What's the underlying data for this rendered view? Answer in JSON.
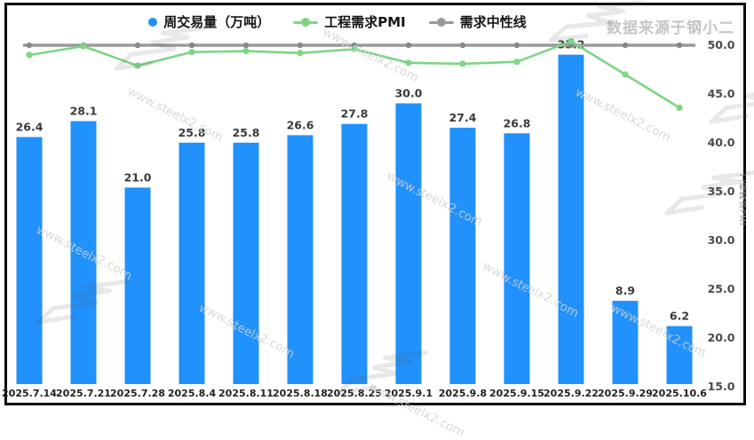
{
  "source_label": "数据来源于钢小二",
  "watermark": {
    "text": "www.steelx2.com"
  },
  "legend": [
    {
      "label": "周交易量（万吨）",
      "marker": "dot",
      "color": "#2191FB"
    },
    {
      "label": "工程需求PMI",
      "marker": "line-dot",
      "color": "#7ED586"
    },
    {
      "label": "需求中性线",
      "marker": "line-dot",
      "color": "#9A9A9A"
    }
  ],
  "right_axis": {
    "title": "工程需求PMI",
    "tick_labels": [
      "50.0",
      "45.0",
      "40.0",
      "35.0",
      "30.0",
      "25.0",
      "20.0",
      "15.0"
    ],
    "tick_values": [
      50,
      45,
      40,
      35,
      30,
      25,
      20,
      15
    ]
  },
  "chart_data": {
    "type": "bar",
    "title": "",
    "categories": [
      "2025.7.14",
      "2025.7.21",
      "2025.7.28",
      "2025.8.4",
      "2025.8.11",
      "2025.8.18",
      "2025.8.25",
      "2025.9.1",
      "2025.9.8",
      "2025.9.15",
      "2025.9.22",
      "2025.9.29",
      "2025.10.6"
    ],
    "series": [
      {
        "name": "周交易量（万吨）",
        "type": "bar",
        "axis": "left",
        "color": "#2191FB",
        "values": [
          26.4,
          28.1,
          21.0,
          25.8,
          25.8,
          26.6,
          27.8,
          30.0,
          27.4,
          26.8,
          35.2,
          8.9,
          6.2
        ]
      },
      {
        "name": "工程需求PMI",
        "type": "line",
        "axis": "right",
        "color": "#7ED586",
        "values": [
          49.0,
          49.9,
          47.9,
          49.3,
          49.4,
          49.2,
          49.6,
          48.2,
          48.1,
          48.3,
          50.4,
          47.0,
          43.6
        ]
      },
      {
        "name": "需求中性线",
        "type": "line",
        "axis": "right",
        "color": "#9A9A9A",
        "values": [
          50,
          50,
          50,
          50,
          50,
          50,
          50,
          50,
          50,
          50,
          50,
          50,
          50
        ]
      }
    ],
    "right_axis_range": [
      15,
      50
    ],
    "left_axis_visible": false,
    "grid": false,
    "legend_position": "top",
    "bar_label_decimals": 1
  }
}
